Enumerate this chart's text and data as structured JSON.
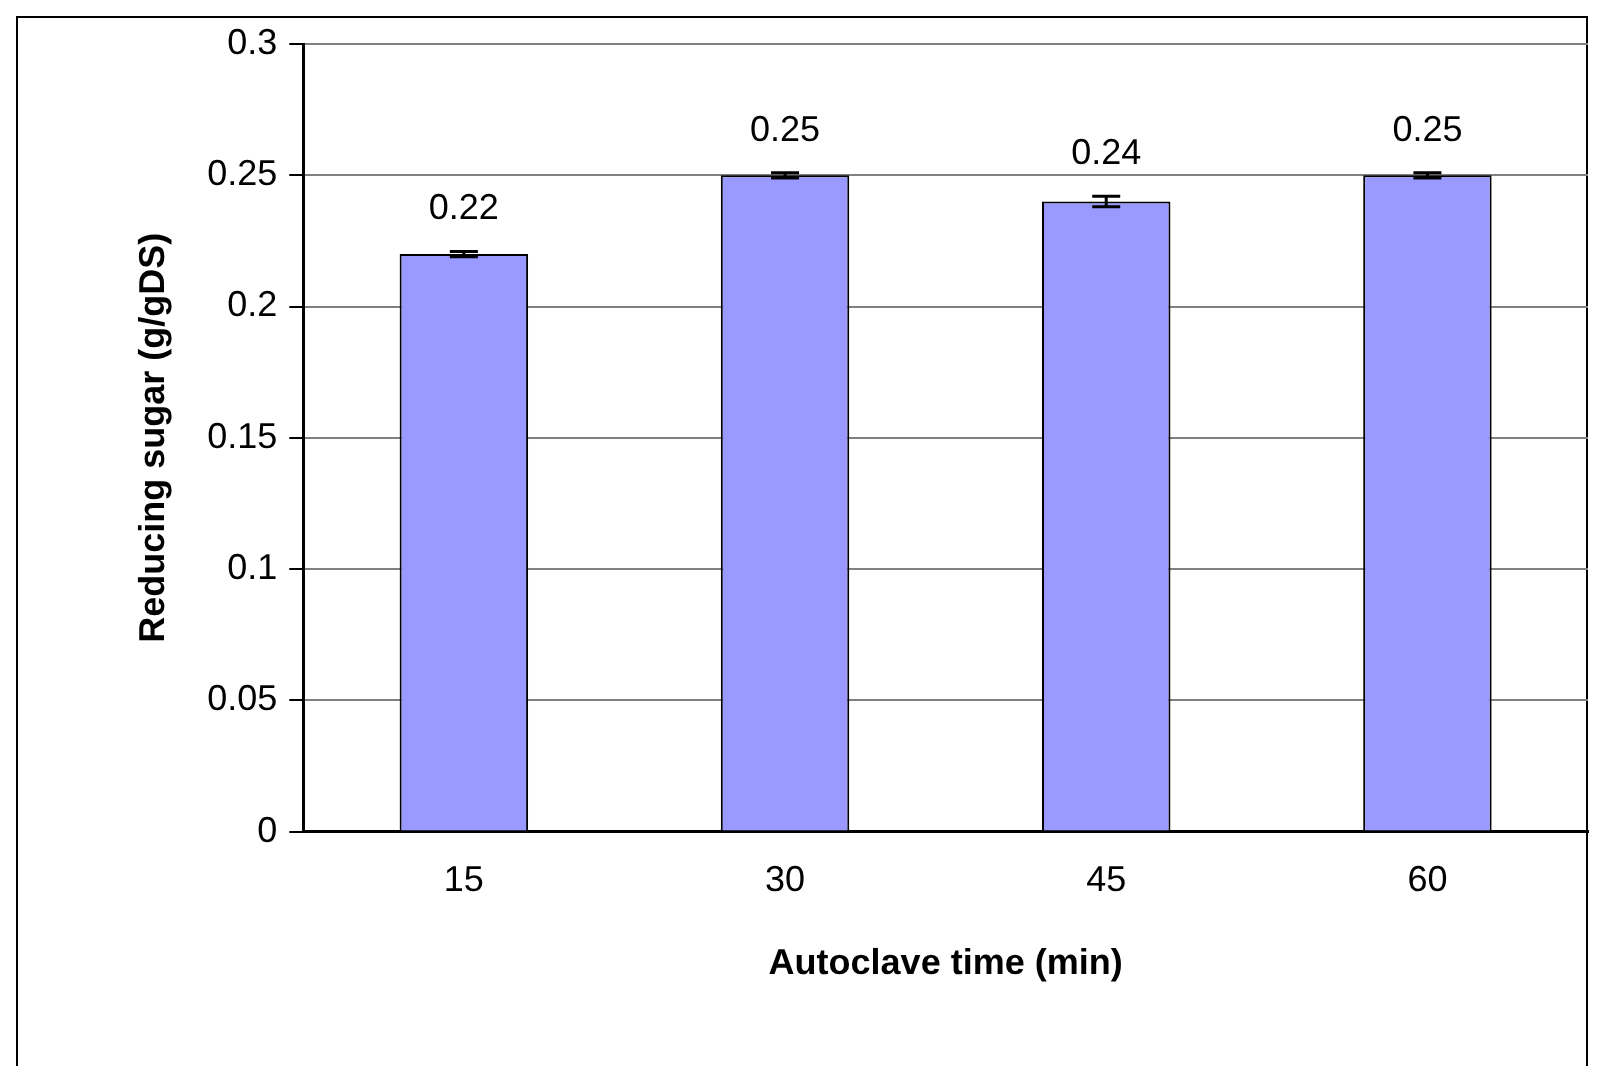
{
  "chart_data": {
    "type": "bar",
    "xlabel": "Autoclave time (min)",
    "ylabel": "Reducing sugar (g/gDS)",
    "categories": [
      "15",
      "30",
      "45",
      "60"
    ],
    "values": [
      0.22,
      0.25,
      0.24,
      0.25
    ],
    "errors": [
      0.001,
      0.001,
      0.002,
      0.001
    ],
    "color": "#9999ff",
    "ylim": [
      0,
      0.3
    ],
    "yticks": [
      0,
      0.05,
      0.1,
      0.15,
      0.2,
      0.25,
      0.3
    ],
    "grid": "y",
    "legend": false,
    "data_labels": true
  }
}
